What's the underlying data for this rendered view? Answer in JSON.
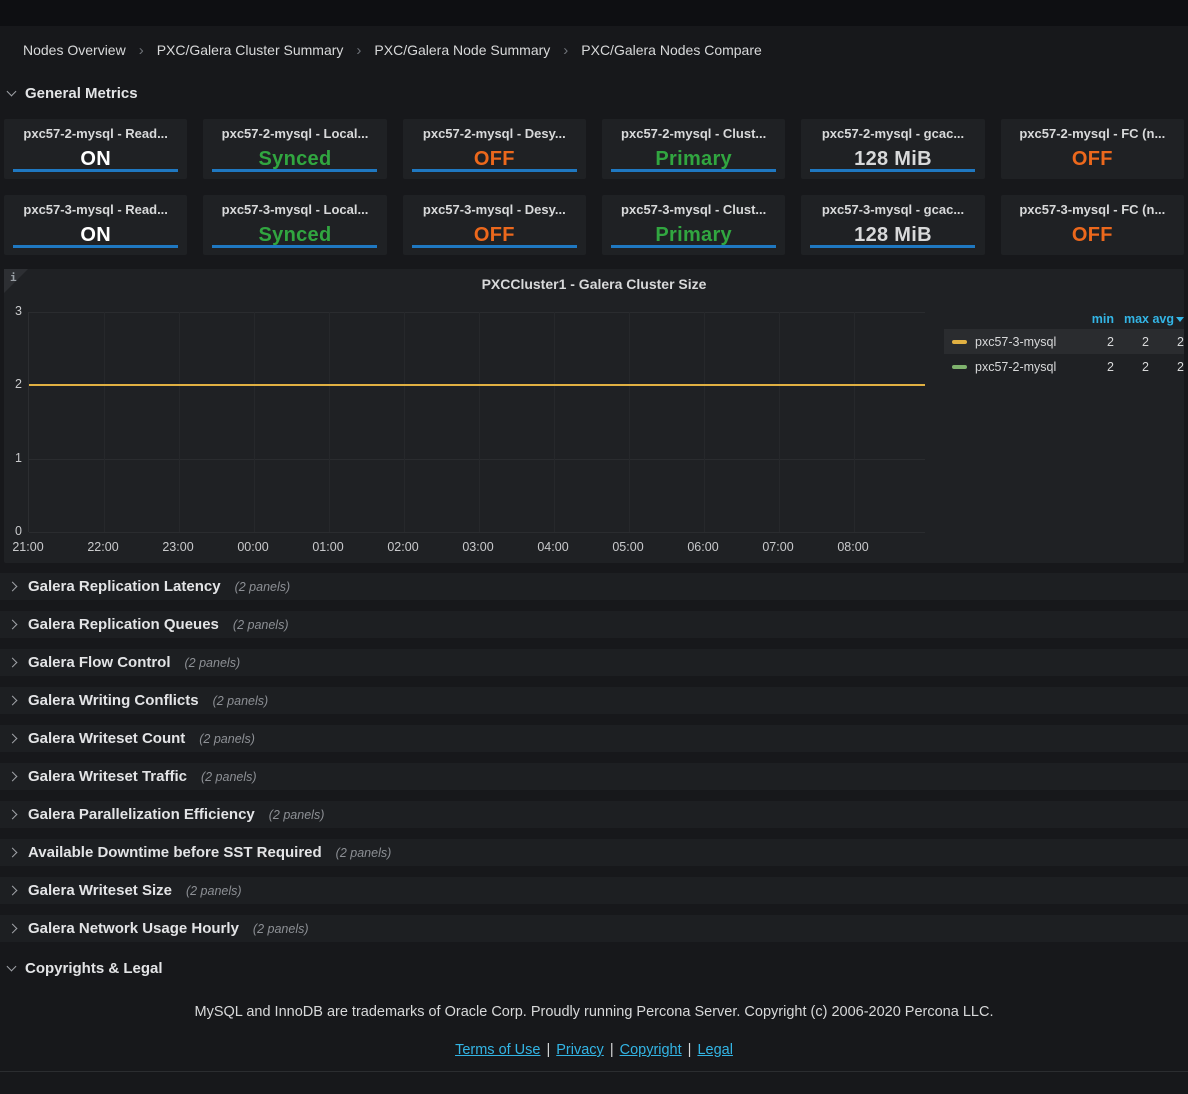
{
  "breadcrumb": {
    "separator": "›",
    "items": [
      "Nodes Overview",
      "PXC/Galera Cluster Summary",
      "PXC/Galera Node Summary",
      "PXC/Galera Nodes Compare"
    ]
  },
  "general_metrics": {
    "title": "General Metrics",
    "panels": [
      {
        "title": "pxc57-2-mysql - Read...",
        "value": "ON",
        "color": "#ffffff",
        "sparkline": true
      },
      {
        "title": "pxc57-2-mysql - Local...",
        "value": "Synced",
        "color": "#31a640",
        "sparkline": true
      },
      {
        "title": "pxc57-2-mysql - Desy...",
        "value": "OFF",
        "color": "#ec681c",
        "sparkline": true
      },
      {
        "title": "pxc57-2-mysql - Clust...",
        "value": "Primary",
        "color": "#31a640",
        "sparkline": true
      },
      {
        "title": "pxc57-2-mysql - gcac...",
        "value": "128 MiB",
        "color": "#d8d9da",
        "sparkline": true
      },
      {
        "title": "pxc57-2-mysql - FC (n...",
        "value": "OFF",
        "color": "#ec681c",
        "sparkline": false
      },
      {
        "title": "pxc57-3-mysql - Read...",
        "value": "ON",
        "color": "#ffffff",
        "sparkline": true
      },
      {
        "title": "pxc57-3-mysql - Local...",
        "value": "Synced",
        "color": "#31a640",
        "sparkline": true
      },
      {
        "title": "pxc57-3-mysql - Desy...",
        "value": "OFF",
        "color": "#ec681c",
        "sparkline": true
      },
      {
        "title": "pxc57-3-mysql - Clust...",
        "value": "Primary",
        "color": "#31a640",
        "sparkline": true
      },
      {
        "title": "pxc57-3-mysql - gcac...",
        "value": "128 MiB",
        "color": "#d8d9da",
        "sparkline": true
      },
      {
        "title": "pxc57-3-mysql - FC (n...",
        "value": "OFF",
        "color": "#ec681c",
        "sparkline": false
      }
    ]
  },
  "chart_data": {
    "type": "line",
    "title": "PXCCluster1 - Galera Cluster Size",
    "info_icon": "i",
    "x_ticks": [
      "21:00",
      "22:00",
      "23:00",
      "00:00",
      "01:00",
      "02:00",
      "03:00",
      "04:00",
      "05:00",
      "06:00",
      "07:00",
      "08:00"
    ],
    "y_ticks": [
      "3",
      "2",
      "1",
      "0"
    ],
    "ylim": [
      0,
      3
    ],
    "grid": true,
    "legend_position": "right",
    "legend_columns": [
      "min",
      "max",
      "avg"
    ],
    "sorted_by": "avg",
    "series": [
      {
        "name": "pxc57-3-mysql",
        "color": "#e0b042",
        "points": [
          {
            "x": "21:00",
            "y": 2
          },
          {
            "x": "08:55",
            "y": 2
          }
        ],
        "min": "2",
        "max": "2",
        "avg": "2",
        "highlighted": true
      },
      {
        "name": "pxc57-2-mysql",
        "color": "#7eb26d",
        "points": [
          {
            "x": "21:00",
            "y": 2
          },
          {
            "x": "08:55",
            "y": 2
          }
        ],
        "min": "2",
        "max": "2",
        "avg": "2",
        "highlighted": false
      }
    ]
  },
  "collapsed_sections": [
    {
      "title": "Galera Replication Latency",
      "count": "(2 panels)"
    },
    {
      "title": "Galera Replication Queues",
      "count": "(2 panels)"
    },
    {
      "title": "Galera Flow Control",
      "count": "(2 panels)"
    },
    {
      "title": "Galera Writing Conflicts",
      "count": "(2 panels)"
    },
    {
      "title": "Galera Writeset Count",
      "count": "(2 panels)"
    },
    {
      "title": "Galera Writeset Traffic",
      "count": "(2 panels)"
    },
    {
      "title": "Galera Parallelization Efficiency",
      "count": "(2 panels)"
    },
    {
      "title": "Available Downtime before SST Required",
      "count": "(2 panels)"
    },
    {
      "title": "Galera Writeset Size",
      "count": "(2 panels)"
    },
    {
      "title": "Galera Network Usage Hourly",
      "count": "(2 panels)"
    }
  ],
  "legal": {
    "title": "Copyrights & Legal",
    "text": "MySQL and InnoDB are trademarks of Oracle Corp. Proudly running Percona Server. Copyright (c) 2006-2020 Percona LLC.",
    "links": [
      "Terms of Use",
      "Privacy",
      "Copyright",
      "Legal"
    ],
    "link_separator": "|"
  },
  "colors": {
    "sparkline_blue": "#1f78c1",
    "status_green": "#31a640",
    "status_orange": "#ec681c",
    "legend_header_blue": "#33b5e5",
    "series_yellow": "#e0b042",
    "series_green": "#7eb26d",
    "link_blue": "#33b5e5",
    "panel_bg": "#1f2124",
    "page_bg": "#17181b"
  }
}
